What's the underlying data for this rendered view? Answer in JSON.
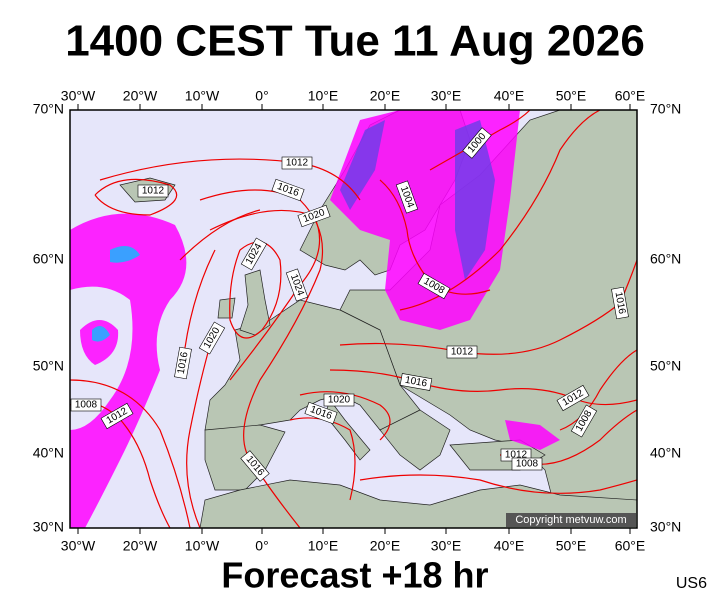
{
  "header": {
    "title": "1400 CEST Tue 11 Aug 2026"
  },
  "axes": {
    "lon_labels": [
      "30°W",
      "20°W",
      "10°W",
      "0°",
      "10°E",
      "20°E",
      "30°E",
      "40°E",
      "50°E",
      "60°E"
    ],
    "lat_labels": [
      "70°N",
      "60°N",
      "50°N",
      "40°N",
      "30°N"
    ]
  },
  "isobar_labels": [
    "1012",
    "1012",
    "1016",
    "1020",
    "1024",
    "1024",
    "1020",
    "1016",
    "1008",
    "1012",
    "1020",
    "1016",
    "1016",
    "1012",
    "1004",
    "1000",
    "1008",
    "1016",
    "1012",
    "1008",
    "1012",
    "1008",
    "1016"
  ],
  "copyright": "Copyright metvuw.com",
  "footer": {
    "forecast": "Forecast +18 hr",
    "code": "US6"
  }
}
